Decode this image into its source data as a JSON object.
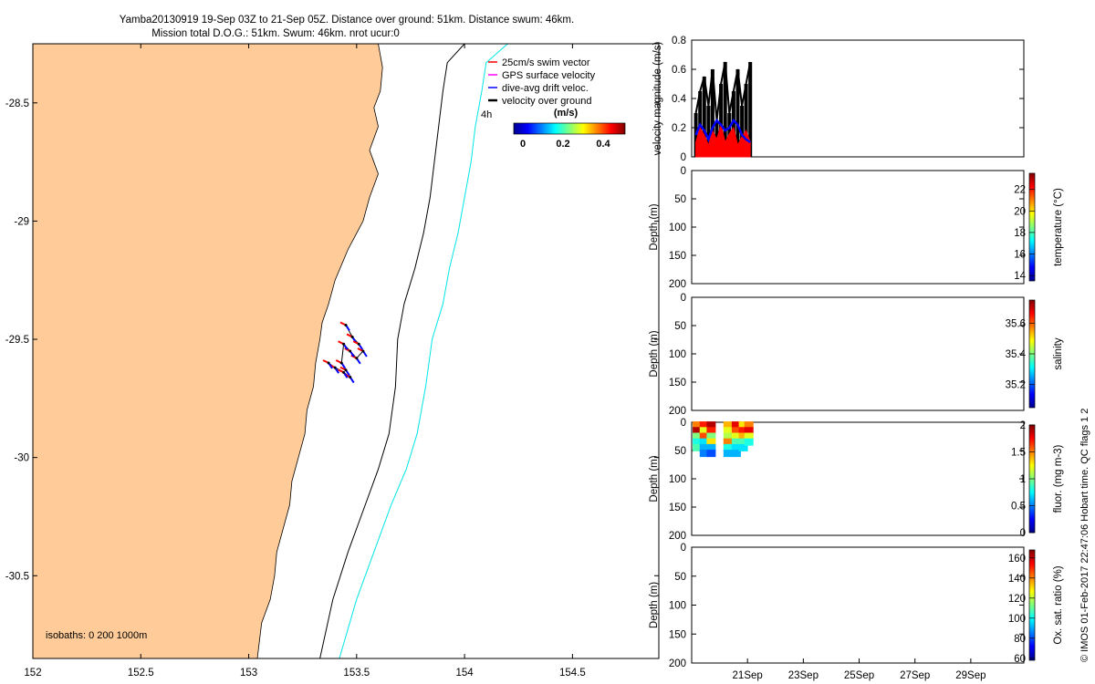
{
  "title": {
    "line1": "Yamba20130919 19-Sep 03Z to 21-Sep 05Z. Distance over ground: 51km. Distance swum: 46km.",
    "line2": "Mission total D.O.G.: 51km. Swum: 46km. nrot ucur:0"
  },
  "colors": {
    "land": "#ffcc99",
    "coast_line": "#000000",
    "isobath_200": "#000000",
    "isobath_1000": "#00e5e5",
    "swim_vector": "#ff0000",
    "gps_velocity": "#ff00ff",
    "drift_velocity": "#0000ff",
    "ground_velocity": "#000000"
  },
  "map": {
    "legend": [
      "25cm/s swim vector",
      "GPS surface velocity",
      "dive-avg drift veloc.",
      "velocity over ground"
    ],
    "duration_label": "4h",
    "colorbar_label": "(m/s)",
    "colorbar_ticks": [
      "0",
      "0.2",
      "0.4"
    ],
    "isobaths_label": "isobaths: 0   200  1000m"
  },
  "side_note": "© IMOS 01-Feb-2017 22:47:06 Hobart time. QC flags 1  2",
  "chart_data": [
    {
      "type": "map",
      "xlim": [
        152,
        154.9
      ],
      "ylim": [
        -30.85,
        -28.25
      ],
      "xticks": [
        152,
        152.5,
        153,
        153.5,
        154,
        154.5
      ],
      "xtick_labels": [
        "152",
        "152.5",
        "153",
        "153.5",
        "154",
        "154.5"
      ],
      "yticks": [
        -28.5,
        -29,
        -29.5,
        -30,
        -30.5
      ],
      "ytick_labels": [
        "-28.5",
        "-29",
        "-29.5",
        "-30",
        "-30.5"
      ],
      "coastline": [
        [
          153.6,
          -28.25
        ],
        [
          153.62,
          -28.35
        ],
        [
          153.61,
          -28.45
        ],
        [
          153.58,
          -28.52
        ],
        [
          153.6,
          -28.6
        ],
        [
          153.56,
          -28.7
        ],
        [
          153.6,
          -28.8
        ],
        [
          153.56,
          -28.9
        ],
        [
          153.53,
          -29.0
        ],
        [
          153.46,
          -29.12
        ],
        [
          153.4,
          -29.25
        ],
        [
          153.37,
          -29.35
        ],
        [
          153.34,
          -29.43
        ],
        [
          153.33,
          -29.5
        ],
        [
          153.31,
          -29.6
        ],
        [
          153.3,
          -29.7
        ],
        [
          153.27,
          -29.8
        ],
        [
          153.26,
          -29.9
        ],
        [
          153.23,
          -30.0
        ],
        [
          153.2,
          -30.1
        ],
        [
          153.19,
          -30.2
        ],
        [
          153.16,
          -30.3
        ],
        [
          153.13,
          -30.4
        ],
        [
          153.12,
          -30.5
        ],
        [
          153.1,
          -30.6
        ],
        [
          153.06,
          -30.7
        ],
        [
          153.04,
          -30.85
        ]
      ],
      "isobath_200": [
        [
          154.0,
          -28.25
        ],
        [
          153.92,
          -28.33
        ],
        [
          153.9,
          -28.45
        ],
        [
          153.88,
          -28.6
        ],
        [
          153.86,
          -28.75
        ],
        [
          153.84,
          -28.9
        ],
        [
          153.81,
          -29.05
        ],
        [
          153.77,
          -29.2
        ],
        [
          153.72,
          -29.35
        ],
        [
          153.69,
          -29.5
        ],
        [
          153.68,
          -29.7
        ],
        [
          153.65,
          -29.9
        ],
        [
          153.6,
          -30.05
        ],
        [
          153.54,
          -30.2
        ],
        [
          153.46,
          -30.4
        ],
        [
          153.39,
          -30.6
        ],
        [
          153.33,
          -30.85
        ]
      ],
      "isobath_1000": [
        [
          154.2,
          -28.25
        ],
        [
          154.1,
          -28.33
        ],
        [
          154.08,
          -28.45
        ],
        [
          154.05,
          -28.6
        ],
        [
          154.03,
          -28.75
        ],
        [
          154.0,
          -28.9
        ],
        [
          153.97,
          -29.05
        ],
        [
          153.93,
          -29.2
        ],
        [
          153.9,
          -29.35
        ],
        [
          153.85,
          -29.5
        ],
        [
          153.82,
          -29.7
        ],
        [
          153.78,
          -29.9
        ],
        [
          153.73,
          -30.05
        ],
        [
          153.66,
          -30.2
        ],
        [
          153.58,
          -30.4
        ],
        [
          153.5,
          -30.6
        ],
        [
          153.42,
          -30.85
        ]
      ],
      "track": [
        [
          153.45,
          -29.44
        ],
        [
          153.48,
          -29.49
        ],
        [
          153.51,
          -29.52
        ],
        [
          153.53,
          -29.55
        ],
        [
          153.5,
          -29.58
        ],
        [
          153.47,
          -29.55
        ],
        [
          153.44,
          -29.52
        ],
        [
          153.43,
          -29.6
        ],
        [
          153.45,
          -29.63
        ],
        [
          153.47,
          -29.66
        ],
        [
          153.44,
          -29.64
        ],
        [
          153.4,
          -29.62
        ],
        [
          153.37,
          -29.6
        ]
      ]
    },
    {
      "type": "line",
      "ylabel": "velocity magnitude (m/s)",
      "ylim": [
        0,
        0.8
      ],
      "yticks": [
        0,
        0.2,
        0.4,
        0.6,
        0.8
      ],
      "series": [
        {
          "color": "#000000",
          "x": [
            19.15,
            19.3,
            19.45,
            19.6,
            19.75,
            19.9,
            20.05,
            20.2,
            20.35,
            20.5,
            20.65,
            20.8,
            20.95,
            21.1
          ],
          "values": [
            0.3,
            0.45,
            0.55,
            0.35,
            0.6,
            0.25,
            0.5,
            0.65,
            0.3,
            0.45,
            0.6,
            0.35,
            0.5,
            0.65
          ]
        },
        {
          "color": "#ff0000",
          "x": [
            19.15,
            19.3,
            19.45,
            19.6,
            19.75,
            19.9,
            20.05,
            20.2,
            20.35,
            20.5,
            20.65,
            20.8,
            20.95,
            21.1
          ],
          "values": [
            0.1,
            0.2,
            0.15,
            0.08,
            0.18,
            0.12,
            0.22,
            0.1,
            0.16,
            0.2,
            0.08,
            0.14,
            0.18,
            0.1
          ]
        },
        {
          "color": "#0000ff",
          "x": [
            19.15,
            19.3,
            19.45,
            19.6,
            19.75,
            19.9,
            20.05,
            20.2,
            20.35,
            20.5,
            20.65,
            20.8,
            20.95,
            21.1
          ],
          "values": [
            0.15,
            0.22,
            0.18,
            0.12,
            0.2,
            0.25,
            0.22,
            0.18,
            0.2,
            0.25,
            0.22,
            0.15,
            0.12,
            0.1
          ]
        }
      ]
    },
    {
      "type": "heatmap",
      "cbar_label": "temperature (°C)",
      "clim": [
        13.5,
        23.5
      ],
      "cbar_ticks": [
        "14",
        "16",
        "18",
        "20",
        "22"
      ],
      "yticks": [
        "0",
        "50",
        "100",
        "150",
        "200"
      ],
      "ylabel": "Depth (m)"
    },
    {
      "type": "heatmap",
      "cbar_label": "salinity",
      "clim": [
        35.05,
        35.75
      ],
      "cbar_ticks": [
        "35.2",
        "35.4",
        "35.6"
      ],
      "yticks": [
        "0",
        "50",
        "100",
        "150",
        "200"
      ],
      "ylabel": "Depth (m)"
    },
    {
      "type": "heatmap",
      "cbar_label": "fluor. (mg m-3)",
      "clim": [
        0,
        2
      ],
      "cbar_ticks": [
        "0",
        "0.5",
        "1",
        "1.5",
        "2"
      ],
      "yticks": [
        "0",
        "50",
        "100",
        "150",
        "200"
      ],
      "ylabel": "Depth (m)",
      "columns": [
        {
          "day": 19.2,
          "depth": [
            5,
            15,
            25,
            35,
            45
          ],
          "value": [
            1.5,
            1.9,
            1.0,
            0.8,
            0.9
          ]
        },
        {
          "day": 19.45,
          "depth": [
            5,
            15,
            25,
            35,
            45,
            55
          ],
          "value": [
            1.7,
            1.2,
            1.6,
            0.7,
            0.6,
            0.5
          ]
        },
        {
          "day": 19.7,
          "depth": [
            5,
            15,
            25,
            35,
            45,
            55
          ],
          "value": [
            1.9,
            1.7,
            1.0,
            1.3,
            0.6,
            0.4
          ]
        },
        {
          "day": 20.3,
          "depth": [
            5,
            15,
            25,
            35,
            45,
            55
          ],
          "value": [
            1.4,
            1.2,
            1.1,
            1.5,
            0.8,
            0.6
          ]
        },
        {
          "day": 20.6,
          "depth": [
            5,
            15,
            25,
            35,
            45,
            55
          ],
          "value": [
            1.8,
            1.6,
            1.2,
            0.9,
            0.7,
            0.6
          ]
        },
        {
          "day": 20.85,
          "depth": [
            5,
            15,
            25,
            35,
            45
          ],
          "value": [
            1.3,
            1.7,
            1.4,
            0.9,
            0.7
          ]
        },
        {
          "day": 21.05,
          "depth": [
            5,
            15,
            25,
            35
          ],
          "value": [
            1.5,
            1.8,
            1.2,
            0.8
          ]
        }
      ]
    },
    {
      "type": "heatmap",
      "cbar_label": "Ox. sat. ratio (%)",
      "clim": [
        58,
        168
      ],
      "cbar_ticks": [
        "60",
        "80",
        "100",
        "120",
        "140",
        "160"
      ],
      "yticks": [
        "0",
        "50",
        "100",
        "150",
        "200"
      ],
      "ylabel": "Depth (m)",
      "xticks": [
        21,
        23,
        25,
        27,
        29
      ],
      "xtick_labels": [
        "21Sep",
        "23Sep",
        "25Sep",
        "27Sep",
        "29Sep"
      ],
      "xlim": [
        19,
        30.9
      ]
    }
  ]
}
